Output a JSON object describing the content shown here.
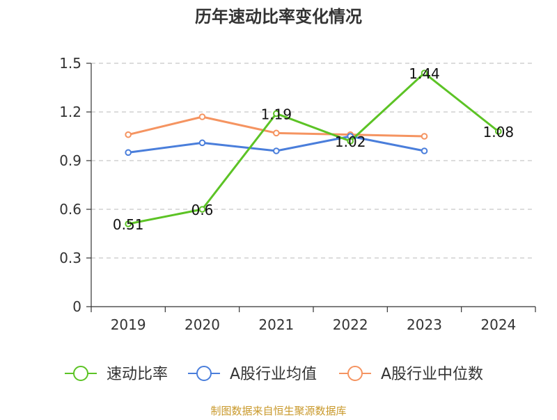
{
  "chart_data": {
    "type": "line",
    "title": "历年速动比率变化情况",
    "categories": [
      "2019",
      "2020",
      "2021",
      "2022",
      "2023",
      "2024"
    ],
    "ylim": [
      0,
      1.5
    ],
    "yticks": [
      "0",
      "0.3",
      "0.6",
      "0.9",
      "1.2",
      "1.5"
    ],
    "grid": true,
    "legend_position": "bottom",
    "series": [
      {
        "name": "速动比率",
        "color": "#5cc325",
        "values": [
          0.51,
          0.6,
          1.19,
          1.02,
          1.44,
          1.08
        ],
        "labels": [
          "0.51",
          "0.6",
          "1.19",
          "1.02",
          "1.44",
          "1.08"
        ],
        "show_labels": true
      },
      {
        "name": "A股行业均值",
        "color": "#4a7edb",
        "values": [
          0.95,
          1.01,
          0.96,
          1.05,
          0.96,
          null
        ],
        "show_labels": false
      },
      {
        "name": "A股行业中位数",
        "color": "#f59461",
        "values": [
          1.06,
          1.17,
          1.07,
          1.06,
          1.05,
          null
        ],
        "show_labels": false
      }
    ]
  },
  "footer": {
    "source": "制图数据来自恒生聚源数据库",
    "color": "#c9992b"
  }
}
